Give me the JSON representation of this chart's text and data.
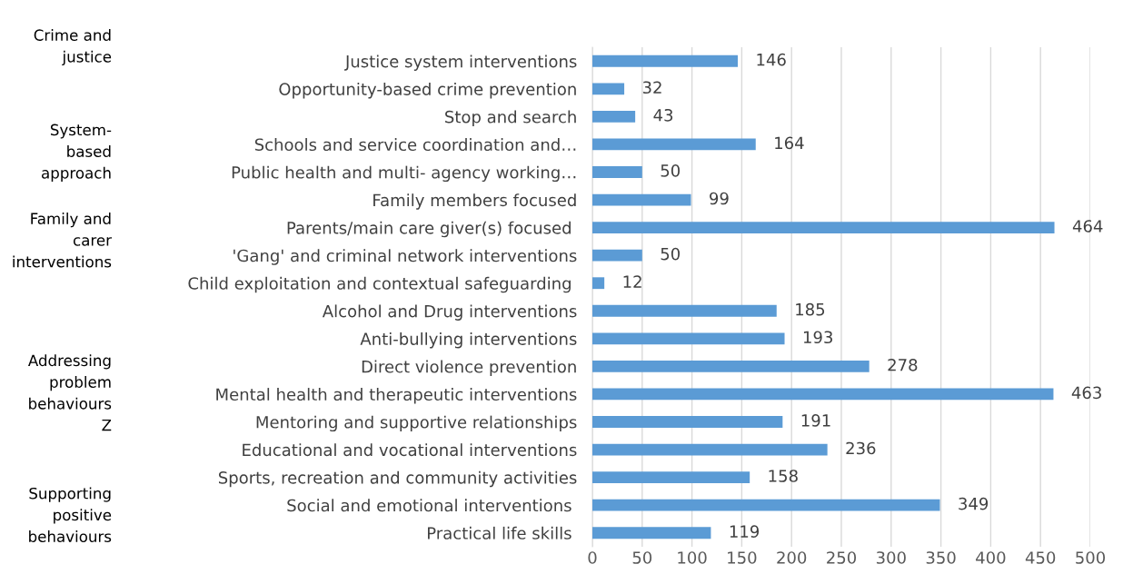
{
  "chart_data": {
    "type": "bar",
    "orientation": "horizontal",
    "categories": [
      "Justice system interventions",
      "Opportunity-based crime prevention",
      "Stop and search",
      "Schools and service coordination and…",
      "Public health and multi- agency working…",
      "Family members focused",
      "Parents/main care giver(s) focused ",
      "'Gang' and criminal network interventions",
      "Child exploitation and contextual safeguarding ",
      "Alcohol and Drug interventions",
      "Anti-bullying interventions",
      "Direct violence prevention",
      "Mental health and therapeutic interventions",
      "Mentoring and supportive relationships",
      "Educational and vocational interventions",
      "Sports, recreation and community activities",
      "Social and emotional interventions ",
      "Practical life skills "
    ],
    "values": [
      146,
      32,
      43,
      164,
      50,
      99,
      464,
      50,
      12,
      185,
      193,
      278,
      463,
      191,
      236,
      158,
      349,
      119
    ],
    "color": "#5b9bd5",
    "data_labels": true,
    "grid": "x",
    "xlim": [
      0,
      500
    ],
    "xticks": [
      0,
      50,
      100,
      150,
      200,
      250,
      300,
      350,
      400,
      450,
      500
    ],
    "annotations": [
      "Crime and justice",
      "System-based approach",
      "Family and carer interventions",
      "Addressing problem behaviours Z",
      "Supporting positive behaviours"
    ]
  }
}
